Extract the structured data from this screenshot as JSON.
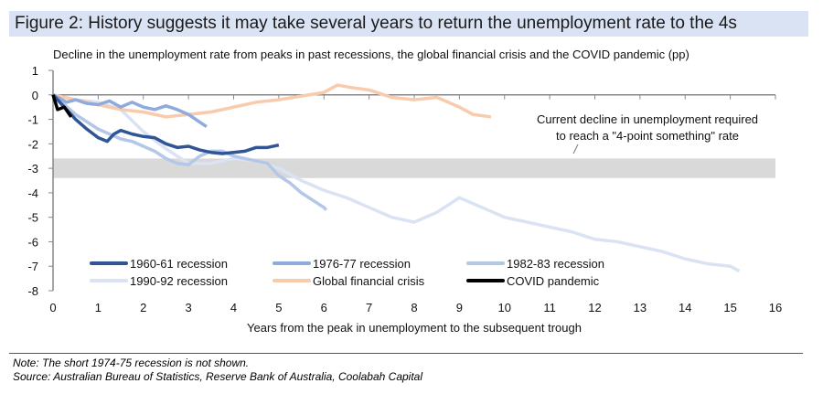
{
  "title": "Figure 2: History suggests it may take several years to return the unemployment rate to the 4s",
  "note": "Note: The short 1974-75 recession is not shown.",
  "source": "Source: Australian Bureau of Statistics, Reserve Bank of Australia, Coolabah Capital",
  "chart_data": {
    "type": "line",
    "title": "Decline in the unemployment rate from peaks in past recessions, the global financial crisis and the COVID pandemic (pp)",
    "xlabel": "Years from the peak in unemployment to the subsequent trough",
    "ylabel": "",
    "xlim": [
      0,
      16
    ],
    "ylim": [
      -8,
      1
    ],
    "xticks": [
      0,
      1,
      2,
      3,
      4,
      5,
      6,
      7,
      8,
      9,
      10,
      11,
      12,
      13,
      14,
      15,
      16
    ],
    "yticks": [
      1,
      0,
      -1,
      -2,
      -3,
      -4,
      -5,
      -6,
      -7,
      -8
    ],
    "legend": "bottom-left",
    "band": {
      "y_from": -2.6,
      "y_to": -3.4,
      "color": "#d9d9d9"
    },
    "annotation": [
      "Current decline in unemployment required",
      "to reach a \"4-point something\" rate"
    ],
    "series": [
      {
        "name": "1960-61 recession",
        "color": "#2f5597",
        "points": [
          [
            0,
            0
          ],
          [
            0.25,
            -0.5
          ],
          [
            0.5,
            -1
          ],
          [
            0.75,
            -1.4
          ],
          [
            1,
            -1.75
          ],
          [
            1.2,
            -1.9
          ],
          [
            1.35,
            -1.6
          ],
          [
            1.5,
            -1.45
          ],
          [
            1.75,
            -1.6
          ],
          [
            2,
            -1.7
          ],
          [
            2.25,
            -1.75
          ],
          [
            2.5,
            -2.0
          ],
          [
            2.75,
            -2.15
          ],
          [
            3,
            -2.1
          ],
          [
            3.25,
            -2.25
          ],
          [
            3.5,
            -2.35
          ],
          [
            3.75,
            -2.4
          ],
          [
            4,
            -2.35
          ],
          [
            4.25,
            -2.3
          ],
          [
            4.5,
            -2.15
          ],
          [
            4.75,
            -2.15
          ],
          [
            5,
            -2.05
          ]
        ]
      },
      {
        "name": "1976-77 recession",
        "color": "#8faadc",
        "points": [
          [
            0,
            0
          ],
          [
            0.3,
            -0.3
          ],
          [
            0.5,
            -0.2
          ],
          [
            0.75,
            -0.35
          ],
          [
            1,
            -0.4
          ],
          [
            1.25,
            -0.25
          ],
          [
            1.5,
            -0.5
          ],
          [
            1.75,
            -0.3
          ],
          [
            2,
            -0.5
          ],
          [
            2.25,
            -0.6
          ],
          [
            2.5,
            -0.45
          ],
          [
            2.75,
            -0.6
          ],
          [
            3,
            -0.8
          ],
          [
            3.2,
            -1.05
          ],
          [
            3.4,
            -1.3
          ]
        ]
      },
      {
        "name": "1982-83 recession",
        "color": "#b4c7e7",
        "points": [
          [
            0,
            0
          ],
          [
            0.25,
            -0.4
          ],
          [
            0.5,
            -0.8
          ],
          [
            0.75,
            -1.1
          ],
          [
            1,
            -1.4
          ],
          [
            1.25,
            -1.6
          ],
          [
            1.5,
            -1.8
          ],
          [
            1.75,
            -1.9
          ],
          [
            2,
            -2.1
          ],
          [
            2.25,
            -2.3
          ],
          [
            2.5,
            -2.6
          ],
          [
            2.75,
            -2.8
          ],
          [
            3,
            -2.85
          ],
          [
            3.25,
            -2.5
          ],
          [
            3.5,
            -2.3
          ],
          [
            3.75,
            -2.3
          ],
          [
            4,
            -2.5
          ],
          [
            4.25,
            -2.6
          ],
          [
            4.5,
            -2.7
          ],
          [
            4.75,
            -2.8
          ],
          [
            5,
            -3.3
          ],
          [
            5.25,
            -3.6
          ],
          [
            5.5,
            -4.0
          ],
          [
            5.75,
            -4.3
          ],
          [
            6,
            -4.6
          ],
          [
            6.05,
            -4.7
          ]
        ]
      },
      {
        "name": "1990-92 recession",
        "color": "#dae3f3",
        "points": [
          [
            0,
            0
          ],
          [
            0.5,
            -0.2
          ],
          [
            1,
            -0.3
          ],
          [
            1.5,
            -0.6
          ],
          [
            2,
            -1.5
          ],
          [
            2.5,
            -2.2
          ],
          [
            3,
            -2.8
          ],
          [
            3.5,
            -2.8
          ],
          [
            4,
            -2.6
          ],
          [
            4.5,
            -2.7
          ],
          [
            5,
            -3.0
          ],
          [
            5.5,
            -3.5
          ],
          [
            6,
            -3.9
          ],
          [
            6.5,
            -4.2
          ],
          [
            7,
            -4.6
          ],
          [
            7.5,
            -5.0
          ],
          [
            8,
            -5.2
          ],
          [
            8.5,
            -4.8
          ],
          [
            9,
            -4.2
          ],
          [
            9.5,
            -4.6
          ],
          [
            10,
            -5.0
          ],
          [
            10.5,
            -5.2
          ],
          [
            11,
            -5.4
          ],
          [
            11.5,
            -5.6
          ],
          [
            12,
            -5.9
          ],
          [
            12.5,
            -6.0
          ],
          [
            13,
            -6.2
          ],
          [
            13.5,
            -6.4
          ],
          [
            14,
            -6.7
          ],
          [
            14.5,
            -6.9
          ],
          [
            15,
            -7.0
          ],
          [
            15.2,
            -7.2
          ]
        ]
      },
      {
        "name": "Global financial crisis",
        "color": "#f8cbad",
        "points": [
          [
            0,
            0
          ],
          [
            0.5,
            -0.2
          ],
          [
            1,
            -0.4
          ],
          [
            1.5,
            -0.6
          ],
          [
            2,
            -0.7
          ],
          [
            2.5,
            -0.9
          ],
          [
            3,
            -0.8
          ],
          [
            3.5,
            -0.7
          ],
          [
            4,
            -0.5
          ],
          [
            4.5,
            -0.3
          ],
          [
            5,
            -0.2
          ],
          [
            5.5,
            -0.05
          ],
          [
            6,
            0.1
          ],
          [
            6.3,
            0.4
          ],
          [
            6.6,
            0.3
          ],
          [
            7,
            0.2
          ],
          [
            7.5,
            -0.1
          ],
          [
            8,
            -0.2
          ],
          [
            8.5,
            -0.1
          ],
          [
            9,
            -0.5
          ],
          [
            9.3,
            -0.8
          ],
          [
            9.7,
            -0.9
          ]
        ]
      },
      {
        "name": "COVID pandemic",
        "color": "#000000",
        "points": [
          [
            0,
            0
          ],
          [
            0.1,
            -0.6
          ],
          [
            0.25,
            -0.5
          ],
          [
            0.4,
            -0.9
          ]
        ]
      }
    ]
  }
}
